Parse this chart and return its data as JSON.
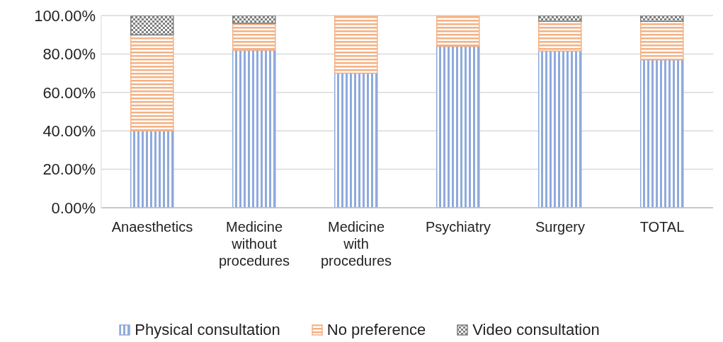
{
  "chart_data": {
    "type": "bar",
    "stacked": true,
    "categories": [
      "Anaesthetics",
      "Medicine without procedures",
      "Medicine with procedures",
      "Psychiatry",
      "Surgery",
      "TOTAL"
    ],
    "series": [
      {
        "name": "Physical consultation",
        "color": "#8faadc",
        "values": [
          40,
          82,
          70,
          84,
          81.5,
          77
        ]
      },
      {
        "name": "No preference",
        "color": "#f4b183",
        "values": [
          50,
          14,
          30,
          16,
          15.6,
          20
        ]
      },
      {
        "name": "Video consultation",
        "color": "#7f7f7f",
        "values": [
          10,
          4,
          0,
          0,
          2.9,
          3
        ]
      }
    ],
    "ylim": [
      0,
      100
    ],
    "yticks": [
      {
        "value": 0,
        "label": "0.00%"
      },
      {
        "value": 20,
        "label": "20.00%"
      },
      {
        "value": 40,
        "label": "40.00%"
      },
      {
        "value": 60,
        "label": "60.00%"
      },
      {
        "value": 80,
        "label": "80.00%"
      },
      {
        "value": 100,
        "label": "100.00%"
      }
    ],
    "grid": "y",
    "legend": "bottom"
  }
}
